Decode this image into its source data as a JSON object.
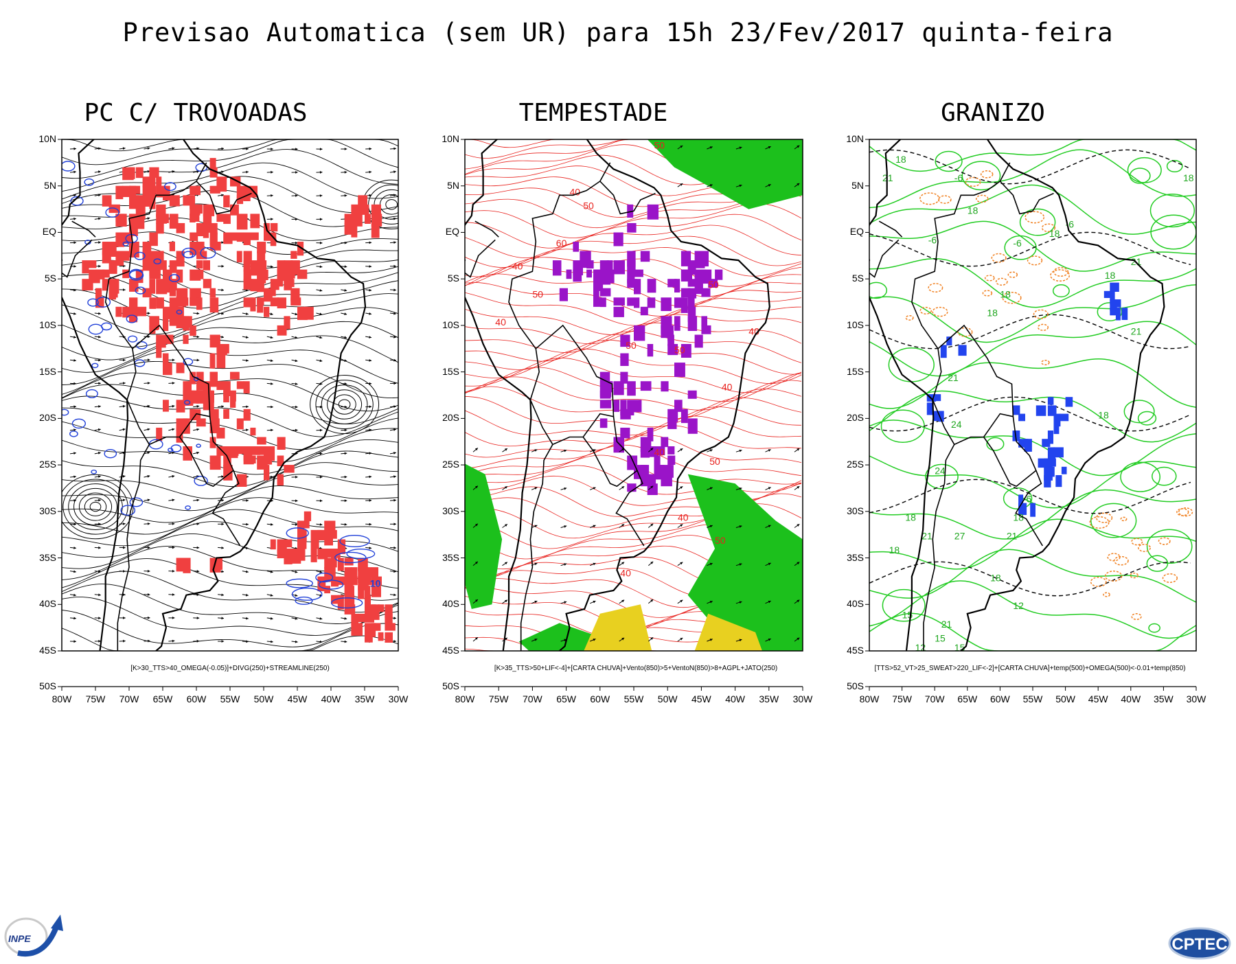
{
  "title": "Previsao Automatica (sem UR) para 15h 23/Fev/2017 quinta-feira",
  "lat_labels": [
    "10N",
    "5N",
    "EQ",
    "5S",
    "10S",
    "15S",
    "20S",
    "25S",
    "30S",
    "35S",
    "40S",
    "45S",
    "50S"
  ],
  "lon_labels": [
    "80W",
    "75W",
    "70W",
    "65W",
    "60W",
    "55W",
    "50W",
    "45W",
    "40W",
    "35W",
    "30W"
  ],
  "panels": [
    {
      "title": "PC C/ TROVOADAS",
      "legend": "[K>30_TTS>40_OMEGA(-0.05)]+DIVG(250)+STREAMLINE(250)",
      "contour_label": "10",
      "colors": {
        "fill": "#f04040",
        "contour": "#1f3fd8",
        "streamline": "#000000"
      }
    },
    {
      "title": "TEMPESTADE",
      "legend": "[K>35_TTS>50+LIF<-4]+[CARTA CHUVA]+Vento(850)>5+VentoN(850)>8+AGPL+JATO(250)",
      "contour_labels": [
        "50",
        "40",
        "50",
        "60",
        "50",
        "50",
        "40",
        "50",
        "40",
        "50",
        "40",
        "40",
        "50",
        "40",
        "40",
        "50",
        "40"
      ],
      "colors": {
        "fill": "#9a14c8",
        "contour": "#e8201c",
        "jet": "#1cc01c",
        "yellow": "#e8d020"
      }
    },
    {
      "title": "GRANIZO",
      "legend": "[TTS>52_VT>25_SWEAT>220_LIF<-2]+[CARTA CHUVA]+temp(500)+OMEGA(500)<-0.01+temp(850)",
      "contour_labels": [
        "18",
        "21",
        "-6",
        "18",
        "18",
        "-6",
        "21",
        "18",
        "-6",
        "-6",
        "18",
        "18",
        "21",
        "18",
        "18",
        "21",
        "24",
        "-6",
        "18",
        "21",
        "18",
        "27",
        "21",
        "24",
        "18",
        "15",
        "12",
        "15",
        "12",
        "21",
        "18",
        "15",
        "9"
      ],
      "colors": {
        "green": "#22cc22",
        "orange": "#f08020",
        "blue": "#2244ee",
        "black": "#000000"
      }
    }
  ],
  "logos": {
    "left": "INPE",
    "right": "CPTEC"
  }
}
